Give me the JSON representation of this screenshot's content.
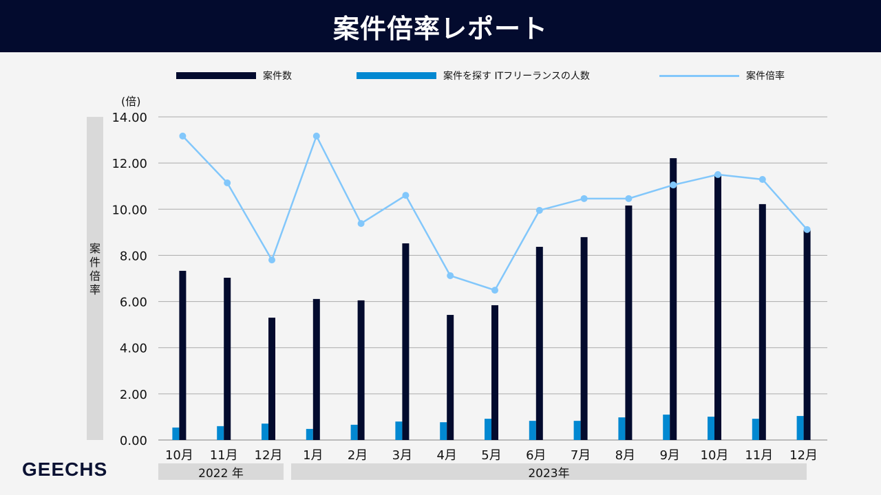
{
  "header": {
    "title": "案件倍率レポート"
  },
  "logo": "GEECHS",
  "chart_data": {
    "type": "bar+line",
    "categories": [
      "10月",
      "11月",
      "12月",
      "1月",
      "2月",
      "3月",
      "4月",
      "5月",
      "6月",
      "7月",
      "8月",
      "9月",
      "10月",
      "11月",
      "12月"
    ],
    "year_groups": [
      {
        "label": "2022 年",
        "months": [
          "10月",
          "11月",
          "12月"
        ]
      },
      {
        "label": "2023年",
        "months": [
          "1月",
          "2月",
          "3月",
          "4月",
          "5月",
          "6月",
          "7月",
          "8月",
          "9月",
          "10月",
          "11月",
          "12月"
        ]
      }
    ],
    "series": [
      {
        "name": "案件数",
        "type": "bar",
        "color": "#030b2e",
        "values": [
          7.33,
          7.03,
          5.3,
          6.11,
          6.05,
          8.52,
          5.42,
          5.84,
          8.37,
          8.79,
          10.16,
          12.21,
          11.53,
          10.22,
          9.09
        ]
      },
      {
        "name": "案件を探す ITフリーランスの人数",
        "type": "bar",
        "color": "#0288d1",
        "values": [
          0.54,
          0.6,
          0.71,
          0.48,
          0.66,
          0.8,
          0.77,
          0.92,
          0.83,
          0.83,
          0.98,
          1.1,
          1.01,
          0.92,
          1.04
        ]
      },
      {
        "name": "案件倍率",
        "type": "line",
        "color": "#82c7fb",
        "values": [
          13.17,
          11.14,
          7.8,
          13.17,
          9.38,
          10.6,
          7.12,
          6.49,
          9.95,
          10.46,
          10.46,
          11.05,
          11.5,
          11.29,
          9.12
        ]
      }
    ],
    "ylabel": "案件倍率",
    "yunit": "(倍)",
    "ylim": [
      0,
      14
    ],
    "yticks": [
      "0.00",
      "2.00",
      "4.00",
      "6.00",
      "8.00",
      "10.00",
      "12.00",
      "14.00"
    ],
    "grid": true,
    "legend_position": "top"
  }
}
